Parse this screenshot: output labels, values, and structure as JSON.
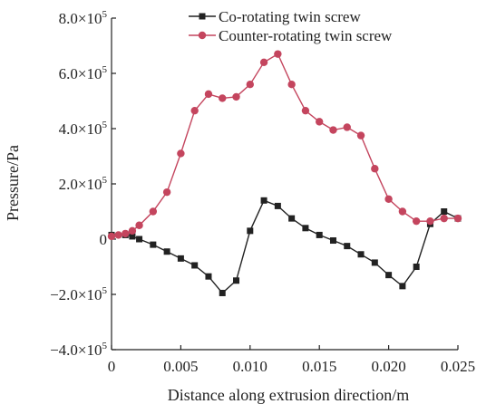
{
  "chart_data": {
    "type": "line",
    "xlabel": "Distance along extrusion direction/m",
    "ylabel": "Pressure/Pa",
    "xlim": [
      0,
      0.025
    ],
    "ylim": [
      -400000,
      800000
    ],
    "x_ticks": [
      {
        "value": 0,
        "label": "0"
      },
      {
        "value": 0.005,
        "label": "0.005"
      },
      {
        "value": 0.01,
        "label": "0.010"
      },
      {
        "value": 0.015,
        "label": "0.015"
      },
      {
        "value": 0.02,
        "label": "0.020"
      },
      {
        "value": 0.025,
        "label": "0.025"
      }
    ],
    "y_ticks": [
      {
        "value": -400000,
        "mantissa": "−4.0×10",
        "exp": "5"
      },
      {
        "value": -200000,
        "mantissa": "−2.0×10",
        "exp": "5"
      },
      {
        "value": 0,
        "mantissa": "0",
        "exp": ""
      },
      {
        "value": 200000,
        "mantissa": "2.0×10",
        "exp": "5"
      },
      {
        "value": 400000,
        "mantissa": "4.0×10",
        "exp": "5"
      },
      {
        "value": 600000,
        "mantissa": "6.0×10",
        "exp": "5"
      },
      {
        "value": 800000,
        "mantissa": "8.0×10",
        "exp": "5"
      }
    ],
    "legend_position": "top-right",
    "series": [
      {
        "name": "Co-rotating twin screw",
        "color": "#222222",
        "marker": "square",
        "x": [
          0,
          0.001,
          0.0015,
          0.002,
          0.003,
          0.004,
          0.005,
          0.006,
          0.007,
          0.008,
          0.009,
          0.01,
          0.011,
          0.012,
          0.013,
          0.014,
          0.015,
          0.016,
          0.017,
          0.018,
          0.019,
          0.02,
          0.021,
          0.022,
          0.023,
          0.024,
          0.025
        ],
        "y": [
          15000,
          15000,
          10000,
          0,
          -20000,
          -45000,
          -70000,
          -95000,
          -135000,
          -195000,
          -150000,
          30000,
          140000,
          120000,
          75000,
          40000,
          15000,
          -5000,
          -25000,
          -55000,
          -85000,
          -130000,
          -170000,
          -100000,
          55000,
          100000,
          75000
        ]
      },
      {
        "name": "Counter-rotating twin screw",
        "color": "#c4455e",
        "marker": "circle",
        "x": [
          0,
          0.0005,
          0.001,
          0.0015,
          0.002,
          0.003,
          0.004,
          0.005,
          0.006,
          0.007,
          0.008,
          0.009,
          0.01,
          0.011,
          0.012,
          0.013,
          0.014,
          0.015,
          0.016,
          0.017,
          0.018,
          0.019,
          0.02,
          0.021,
          0.022,
          0.023,
          0.024,
          0.025
        ],
        "y": [
          10000,
          15000,
          20000,
          30000,
          50000,
          100000,
          170000,
          310000,
          465000,
          525000,
          510000,
          515000,
          560000,
          640000,
          670000,
          560000,
          465000,
          425000,
          395000,
          405000,
          375000,
          255000,
          145000,
          100000,
          65000,
          65000,
          75000,
          75000
        ]
      }
    ]
  }
}
